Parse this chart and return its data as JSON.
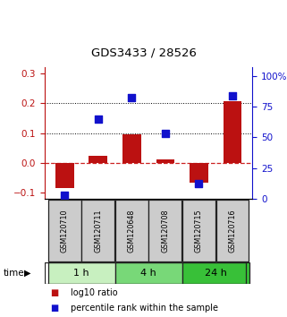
{
  "title": "GDS3433 / 28526",
  "samples": [
    "GSM120710",
    "GSM120711",
    "GSM120648",
    "GSM120708",
    "GSM120715",
    "GSM120716"
  ],
  "log10_ratio": [
    -0.085,
    0.025,
    0.095,
    0.012,
    -0.065,
    0.205
  ],
  "percentile_rank": [
    3,
    65,
    82,
    53,
    12,
    84
  ],
  "groups": [
    {
      "label": "1 h",
      "indices": [
        0,
        1
      ],
      "color": "#c8f0c0"
    },
    {
      "label": "4 h",
      "indices": [
        2,
        3
      ],
      "color": "#78d878"
    },
    {
      "label": "24 h",
      "indices": [
        4,
        5
      ],
      "color": "#38c038"
    }
  ],
  "ylim_left": [
    -0.12,
    0.32
  ],
  "ylim_right": [
    0,
    107
  ],
  "yticks_left": [
    -0.1,
    0.0,
    0.1,
    0.2,
    0.3
  ],
  "yticks_right": [
    0,
    25,
    50,
    75,
    100
  ],
  "ytick_labels_right": [
    "0",
    "25",
    "50",
    "75",
    "100%"
  ],
  "bar_color": "#bb1111",
  "dot_color": "#1111cc",
  "zero_line_color": "#cc2222",
  "grid_lines": [
    0.1,
    0.2
  ],
  "bar_width": 0.55,
  "dot_size": 35,
  "sample_box_color": "#cccccc",
  "sample_box_edgecolor": "#222222",
  "figwidth": 3.21,
  "figheight": 3.54,
  "dpi": 100
}
